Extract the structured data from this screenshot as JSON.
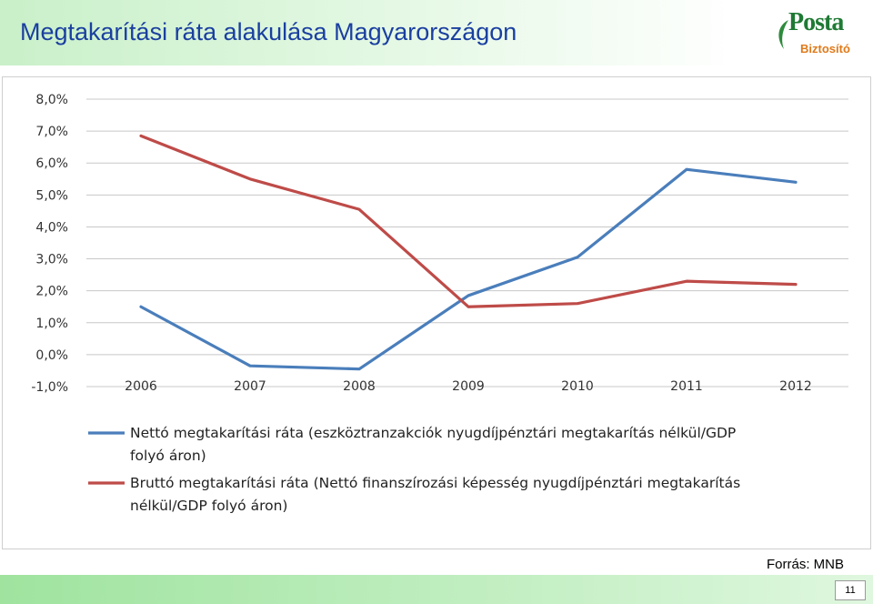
{
  "title": "Megtakarítási ráta alakulása Magyarországon",
  "logo": {
    "name": "Posta",
    "subtitle": "Biztosító"
  },
  "source": "Forrás: MNB",
  "page_number": "11",
  "colors": {
    "netto": "#4a7ebb",
    "brutto": "#be4b48"
  },
  "chart_data": {
    "type": "line",
    "categories": [
      "2006",
      "2007",
      "2008",
      "2009",
      "2010",
      "2011",
      "2012"
    ],
    "ylim": [
      -1,
      8
    ],
    "yticks": [
      "8,0%",
      "7,0%",
      "6,0%",
      "5,0%",
      "4,0%",
      "3,0%",
      "2,0%",
      "1,0%",
      "0,0%",
      "-1,0%"
    ],
    "grid": true,
    "legend_position": "bottom",
    "series": [
      {
        "name": "Nettó megtakarítási ráta (eszköztranzakciók nyugdíjpénztári megtakarítás nélkül/GDP folyó áron)",
        "legend_lines": [
          "Nettó megtakarítási ráta (eszköztranzakciók nyugdíjpénztári megtakarítás nélkül/GDP",
          "folyó áron)"
        ],
        "values": [
          1.5,
          -0.35,
          -0.45,
          1.85,
          3.05,
          5.8,
          5.4
        ]
      },
      {
        "name": "Bruttó megtakarítási ráta (Nettó finanszírozási képesség nyugdíjpénztári megtakarítás nélkül/GDP folyó áron)",
        "legend_lines": [
          "Bruttó megtakarítási ráta (Nettó finanszírozási képesség nyugdíjpénztári megtakarítás",
          "nélkül/GDP folyó áron)"
        ],
        "values": [
          6.85,
          5.5,
          4.55,
          1.5,
          1.6,
          2.3,
          2.2
        ]
      }
    ]
  }
}
